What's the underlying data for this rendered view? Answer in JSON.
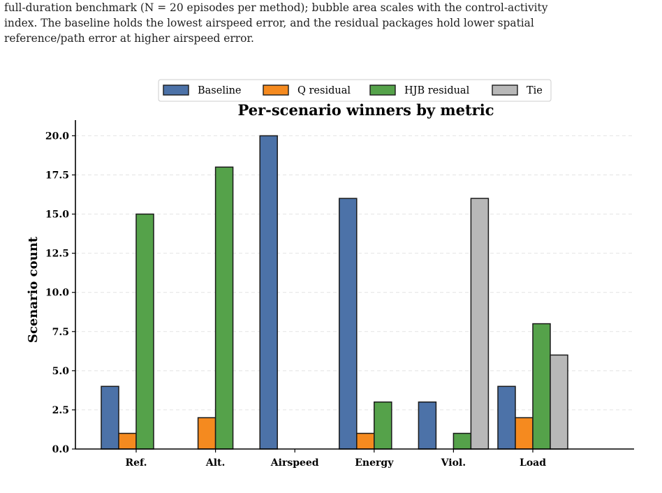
{
  "caption": {
    "lines": [
      "full-duration benchmark (N = 20 episodes per method); bubble area scales with the control-activity",
      "index. The baseline holds the lowest airspeed error, and the residual packages hold lower spatial",
      "reference/path error at higher airspeed error."
    ]
  },
  "chart_data": {
    "type": "bar",
    "title": "Per-scenario winners by metric",
    "xlabel": "",
    "ylabel": "Scenario count",
    "categories": [
      "Ref.",
      "Alt.",
      "Airspeed",
      "Energy",
      "Viol.",
      "Load"
    ],
    "ylim": [
      0,
      21
    ],
    "yticks": [
      "0.0",
      "2.5",
      "5.0",
      "7.5",
      "10.0",
      "12.5",
      "15.0",
      "17.5",
      "20.0"
    ],
    "grid": true,
    "legend": "top-center",
    "series": [
      {
        "name": "Baseline",
        "color": "#4c72a8",
        "values": [
          4,
          0,
          20,
          16,
          3,
          4
        ]
      },
      {
        "name": "Q residual",
        "color": "#f58a1f",
        "values": [
          1,
          2,
          0,
          1,
          0,
          2
        ]
      },
      {
        "name": "HJB residual",
        "color": "#55a24a",
        "values": [
          15,
          18,
          0,
          3,
          1,
          8
        ]
      },
      {
        "name": "Tie",
        "color": "#b8b8b8",
        "values": [
          0,
          0,
          0,
          0,
          16,
          6
        ]
      }
    ]
  }
}
